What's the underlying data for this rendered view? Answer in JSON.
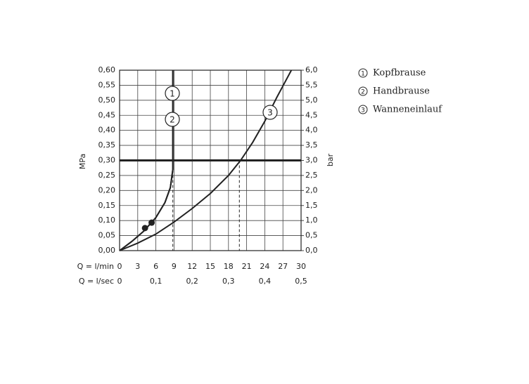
{
  "chart_data": {
    "type": "line",
    "y_label": "MPa",
    "y2_label": "bar",
    "x_label": "Q = l/min",
    "x2_label": "Q = l/sec",
    "xlim": [
      0,
      30
    ],
    "xticks": [
      0,
      3,
      6,
      9,
      12,
      15,
      18,
      21,
      24,
      27,
      30
    ],
    "x2lim": [
      0,
      0.5
    ],
    "x2ticks": [
      0,
      {
        "value": 0.1,
        "label": "0,1"
      },
      {
        "value": 0.2,
        "label": "0,2"
      },
      {
        "value": 0.3,
        "label": "0,3"
      },
      {
        "value": 0.4,
        "label": "0,4"
      },
      {
        "value": 0.5,
        "label": "0,5"
      }
    ],
    "ylim": [
      0,
      0.6
    ],
    "yticks": [
      {
        "value": 0,
        "label": "0,00"
      },
      {
        "value": 0.05,
        "label": "0,05"
      },
      {
        "value": 0.1,
        "label": "0,10"
      },
      {
        "value": 0.15,
        "label": "0,15"
      },
      {
        "value": 0.2,
        "label": "0,20"
      },
      {
        "value": 0.25,
        "label": "0,25"
      },
      {
        "value": 0.3,
        "label": "0,30"
      },
      {
        "value": 0.35,
        "label": "0,35"
      },
      {
        "value": 0.4,
        "label": "0,40"
      },
      {
        "value": 0.45,
        "label": "0,45"
      },
      {
        "value": 0.5,
        "label": "0,50"
      },
      {
        "value": 0.55,
        "label": "0,55"
      },
      {
        "value": 0.6,
        "label": "0,60"
      }
    ],
    "y2lim": [
      0,
      6
    ],
    "y2ticks": [
      {
        "value": 0,
        "label": "0,0"
      },
      {
        "value": 0.5,
        "label": "0,5"
      },
      {
        "value": 1,
        "label": "1,0"
      },
      {
        "value": 1.5,
        "label": "1,5"
      },
      {
        "value": 2,
        "label": "2,0"
      },
      {
        "value": 2.5,
        "label": "2,5"
      },
      {
        "value": 3,
        "label": "3,0"
      },
      {
        "value": 3.5,
        "label": "3,5"
      },
      {
        "value": 4,
        "label": "4,0"
      },
      {
        "value": 4.5,
        "label": "4,5"
      },
      {
        "value": 5,
        "label": "5,0"
      },
      {
        "value": 5.5,
        "label": "5,5"
      },
      {
        "value": 6,
        "label": "6,0"
      }
    ],
    "grid": true,
    "color": "#222222",
    "hline": 0.3,
    "vlines": [
      8.8,
      19.8
    ],
    "series": [
      {
        "name": "Kopfbrause",
        "label": "1",
        "x": [
          0,
          2,
          4,
          6,
          7.5,
          8.4,
          8.8,
          8.8
        ],
        "values": [
          0,
          0.03,
          0.065,
          0.11,
          0.16,
          0.21,
          0.27,
          0.6
        ]
      },
      {
        "name": "Handbrause",
        "label": "2",
        "x": [
          0,
          2,
          4,
          6,
          7.5,
          8.4,
          8.8,
          8.8
        ],
        "values": [
          0,
          0.03,
          0.065,
          0.11,
          0.16,
          0.21,
          0.27,
          0.6
        ]
      },
      {
        "name": "Wanneneinlauf",
        "label": "3",
        "x": [
          0,
          3,
          6,
          9,
          12,
          15,
          18,
          20,
          22,
          24,
          26,
          28.4
        ],
        "values": [
          0,
          0.025,
          0.055,
          0.095,
          0.14,
          0.19,
          0.25,
          0.3,
          0.36,
          0.43,
          0.51,
          0.6
        ]
      }
    ],
    "markers": {
      "x": [
        4.2,
        5.3
      ],
      "values": [
        0.075,
        0.093
      ]
    }
  }
}
